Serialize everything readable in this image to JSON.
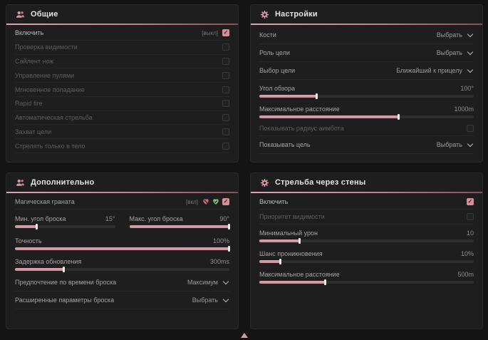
{
  "colors": {
    "accent": "#d79aa3",
    "accent_dark": "#8a4d56",
    "panel_bg": "#1e1e1e",
    "page_bg": "#141414",
    "checkbox_checked": "#d78e98",
    "heart_red": "#ce6672",
    "heart_green": "#7fbf72"
  },
  "panels": [
    {
      "title": "Общие",
      "icon": "people-icon",
      "rows": [
        {
          "label": "Включить",
          "hint": "[выкл]",
          "checked": true
        },
        {
          "label": "Проверка видимости",
          "checked": false
        },
        {
          "label": "Сайлент нож",
          "checked": false
        },
        {
          "label": "Управление пулями",
          "checked": false
        },
        {
          "label": "Мгновенное попадание",
          "checked": false
        },
        {
          "label": "Rapid fire",
          "checked": false
        },
        {
          "label": "Автоматическая стрельба",
          "checked": false
        },
        {
          "label": "Захват цели",
          "checked": false
        },
        {
          "label": "Стрелять только в тело",
          "checked": false
        }
      ]
    },
    {
      "title": "Настройки",
      "icon": "gear-icon",
      "rows": [
        {
          "label": "Кости",
          "value": "Выбрать"
        },
        {
          "label": "Роль цели",
          "value": "Выбрать"
        },
        {
          "label": "Выбор цели",
          "value": "Ближайший к прицелу"
        },
        {
          "label": "Угол обзора",
          "value": "100°",
          "fill": 27
        },
        {
          "label": "Максимальное расстояние",
          "value": "1000m",
          "fill": 65
        },
        {
          "label": "Показывать радиус аимбота",
          "checked": false
        },
        {
          "label": "Показывать цель",
          "value": "Выбрать"
        }
      ]
    },
    {
      "title": "Дополнительно",
      "icon": "people-icon",
      "rows": [
        {
          "label": "Магическая граната",
          "hint": "[вкл]",
          "checked": true,
          "icons": [
            "heart-dislike-icon",
            "heart-like-icon"
          ]
        },
        {
          "left": {
            "label": "Мин. угол броска",
            "value": "15°",
            "fill": 22
          },
          "right": {
            "label": "Макс. угол броска",
            "value": "90°",
            "fill": 100
          }
        },
        {
          "label": "Точность",
          "value": "100%",
          "fill": 100
        },
        {
          "label": "Задержка обновления",
          "value": "300ms",
          "fill": 23
        },
        {
          "label": "Предпочтение по времени броска",
          "value": "Максимум"
        },
        {
          "label": "Расширенные параметры броска",
          "value": "Выбрать"
        }
      ]
    },
    {
      "title": "Стрельба через стены",
      "icon": "gear-icon",
      "rows": [
        {
          "label": "Включить",
          "checked": true
        },
        {
          "label": "Приоритет видимости",
          "checked": false
        },
        {
          "label": "Минимальный урон",
          "value": "10",
          "fill": 19
        },
        {
          "label": "Шанс проникновения",
          "value": "10%",
          "fill": 10
        },
        {
          "label": "Максимальное расстояние",
          "value": "500m",
          "fill": 31
        }
      ]
    }
  ],
  "footer": {
    "indicator_icon": "triangle-up"
  }
}
